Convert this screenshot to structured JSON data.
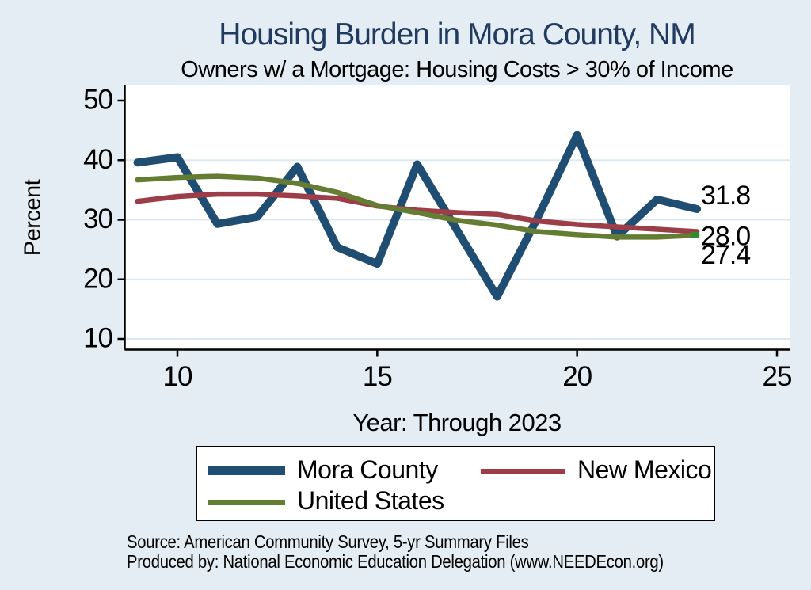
{
  "title": "Housing Burden in Mora County, NM",
  "subtitle": "Owners w/ a Mortgage: Housing Costs > 30% of Income",
  "colors": {
    "page_background": "#e3edf3",
    "plot_background": "#ffffff",
    "gridline": "#dce9f2",
    "axis": "#000000",
    "title_text": "#203a60",
    "mora_county_line": "#204d72",
    "new_mexico_line": "#9c3d47",
    "united_states_line": "#647d32",
    "united_states_end_marker": "#2e8b2e"
  },
  "chart_data": {
    "type": "line",
    "title": "Housing Burden in Mora County, NM",
    "subtitle": "Owners w/ a Mortgage: Housing Costs > 30% of Income",
    "xlabel": "Year: Through 2023",
    "ylabel": "Percent",
    "x": [
      9,
      10,
      11,
      12,
      13,
      14,
      15,
      16,
      17,
      18,
      19,
      20,
      21,
      22,
      23
    ],
    "series": [
      {
        "name": "Mora County",
        "color": "#204d72",
        "width": 10,
        "values": [
          39.6,
          40.5,
          29.3,
          30.5,
          38.9,
          25.4,
          22.6,
          39.3,
          28.2,
          17.1,
          30.2,
          44.2,
          27.2,
          33.4,
          31.8
        ],
        "end_label": "31.8"
      },
      {
        "name": "New Mexico",
        "color": "#9c3d47",
        "width": 6.5,
        "values": [
          33.1,
          33.9,
          34.3,
          34.3,
          34.0,
          33.6,
          32.3,
          31.6,
          31.2,
          30.9,
          29.8,
          29.2,
          28.8,
          28.4,
          28.0
        ],
        "end_label": "28.0"
      },
      {
        "name": "United States",
        "color": "#647d32",
        "width": 6.5,
        "values": [
          36.7,
          37.1,
          37.3,
          37.0,
          36.1,
          34.6,
          32.4,
          31.2,
          29.9,
          29.1,
          28.0,
          27.5,
          27.1,
          27.1,
          27.4
        ],
        "end_label": "27.4",
        "end_marker_color": "#2e8b2e"
      }
    ],
    "x_ticks": [
      10,
      15,
      20,
      25
    ],
    "y_ticks": [
      10,
      20,
      30,
      40,
      50
    ],
    "grid_y": [
      10,
      20,
      30,
      40
    ],
    "xlim": [
      8.65,
      25.3
    ],
    "ylim": [
      8.3,
      52.2
    ],
    "grid": "horizontal",
    "legend_position": "bottom"
  },
  "legend": {
    "items": [
      {
        "label": "Mora County",
        "color": "#204d72"
      },
      {
        "label": "New Mexico",
        "color": "#9c3d47"
      },
      {
        "label": "United States",
        "color": "#647d32"
      }
    ]
  },
  "source": {
    "line1": "Source: American Community Survey, 5-yr Summary Files",
    "line2": "Produced by: National Economic Education Delegation (www.NEEDEcon.org)"
  }
}
